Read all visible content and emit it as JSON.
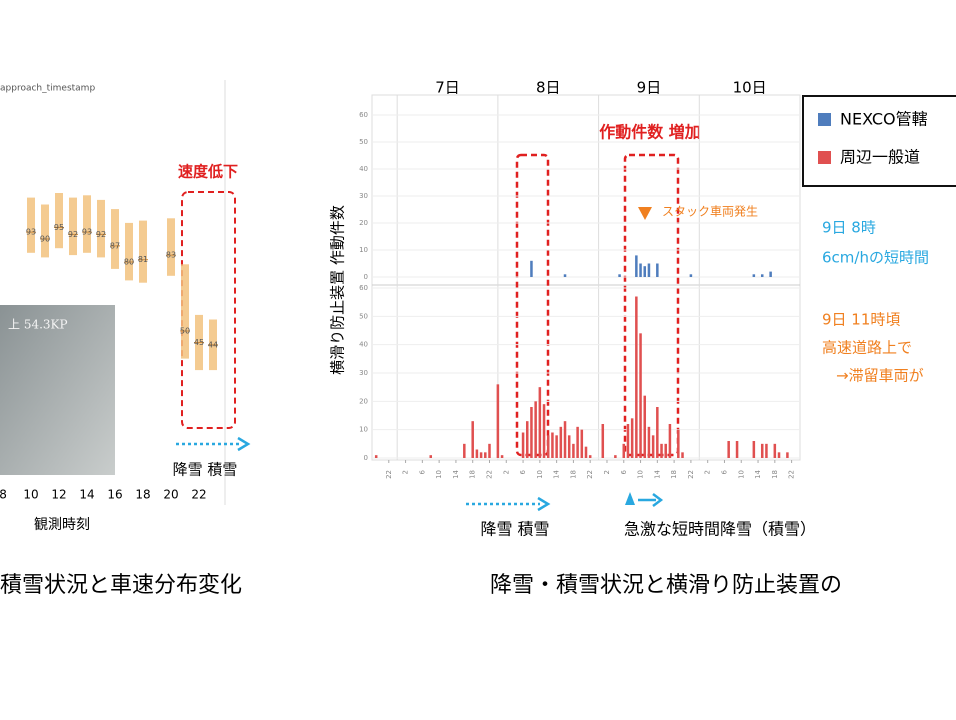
{
  "chart_data": [
    {
      "type": "range_bar",
      "title": "approach_timestamp",
      "x_label": "観測時刻",
      "photo_label": "上 54.3KP",
      "annotation": "速度低下",
      "arrow_label": "降雪 積雪",
      "caption": "積雪状況と車速分布変化",
      "xlim": [
        8,
        23.5
      ],
      "xticks": [
        8,
        10,
        12,
        14,
        16,
        18,
        20,
        22
      ],
      "ylim": [
        20,
        120
      ],
      "series": [
        {
          "color": "#f2c27e",
          "x": [
            10,
            11,
            12,
            13,
            14,
            15,
            16,
            17,
            18,
            20,
            21,
            22,
            23
          ],
          "low": [
            84,
            82,
            86,
            83,
            84,
            82,
            77,
            72,
            71,
            74,
            38,
            33,
            33
          ],
          "high": [
            108,
            105,
            110,
            108,
            109,
            107,
            103,
            97,
            98,
            99,
            79,
            57,
            55
          ],
          "values": [
            93,
            90,
            95,
            92,
            93,
            92,
            87,
            80,
            81,
            83,
            50,
            45,
            44
          ]
        }
      ]
    },
    {
      "type": "bar",
      "y_label": "横滑り防止装置 作動件数",
      "annotation": "作動件数 増加",
      "stuck_label": "スタック車両発生",
      "note_blue": [
        "9日 8時",
        "6cm/hの短時間"
      ],
      "note_orange": [
        "9日 11時頃",
        "高速道路上で",
        "→滞留車両が"
      ],
      "arrow_labels": [
        "降雪 積雪",
        "急激な短時間降雪（積雪）"
      ],
      "caption": "降雪・積雪状況と横滑り防止装置の",
      "xlim": [
        0,
        102
      ],
      "day_labels": [
        {
          "value": 18,
          "label": "7日"
        },
        {
          "value": 42,
          "label": "8日"
        },
        {
          "value": 66,
          "label": "9日"
        },
        {
          "value": 90,
          "label": "10日"
        }
      ],
      "day_lines": [
        6,
        30,
        54,
        78
      ],
      "xticks": [
        {
          "value": 4,
          "label": "22"
        },
        {
          "value": 8,
          "label": "2"
        },
        {
          "value": 12,
          "label": "6"
        },
        {
          "value": 16,
          "label": "10"
        },
        {
          "value": 20,
          "label": "14"
        },
        {
          "value": 24,
          "label": "18"
        },
        {
          "value": 28,
          "label": "22"
        },
        {
          "value": 32,
          "label": "2"
        },
        {
          "value": 36,
          "label": "6"
        },
        {
          "value": 40,
          "label": "10"
        },
        {
          "value": 44,
          "label": "14"
        },
        {
          "value": 48,
          "label": "18"
        },
        {
          "value": 52,
          "label": "22"
        },
        {
          "value": 56,
          "label": "2"
        },
        {
          "value": 60,
          "label": "6"
        },
        {
          "value": 64,
          "label": "10"
        },
        {
          "value": 68,
          "label": "14"
        },
        {
          "value": 72,
          "label": "18"
        },
        {
          "value": 76,
          "label": "22"
        },
        {
          "value": 80,
          "label": "2"
        },
        {
          "value": 84,
          "label": "6"
        },
        {
          "value": 88,
          "label": "10"
        },
        {
          "value": 92,
          "label": "14"
        },
        {
          "value": 96,
          "label": "18"
        },
        {
          "value": 100,
          "label": "22"
        }
      ],
      "panels": [
        {
          "ylim": [
            0,
            60
          ],
          "yticks": [
            0,
            10,
            20,
            30,
            40,
            50,
            60
          ]
        },
        {
          "ylim": [
            0,
            60
          ],
          "yticks": [
            0,
            10,
            20,
            30,
            40,
            50,
            60
          ]
        }
      ],
      "series": [
        {
          "name": "NEXCO管轄",
          "color": "#4f7dbd",
          "panel": 0,
          "x": [
            38,
            46,
            59,
            63,
            64,
            65,
            66,
            68,
            76,
            91,
            93,
            95
          ],
          "values": [
            6,
            1,
            1,
            8,
            5,
            4,
            5,
            5,
            1,
            1,
            1,
            2
          ]
        },
        {
          "name": "周辺一般道",
          "color": "#e05050",
          "panel": 1,
          "x": [
            1,
            14,
            22,
            24,
            25,
            26,
            27,
            28,
            30,
            31,
            36,
            37,
            38,
            39,
            40,
            41,
            42,
            43,
            44,
            45,
            46,
            47,
            48,
            49,
            50,
            51,
            52,
            55,
            58,
            60,
            61,
            62,
            63,
            64,
            65,
            66,
            67,
            68,
            69,
            70,
            71,
            73,
            74,
            85,
            87,
            91,
            93,
            94,
            96,
            97,
            99
          ],
          "values": [
            1,
            1,
            5,
            13,
            3,
            2,
            2,
            5,
            26,
            1,
            9,
            13,
            18,
            20,
            25,
            19,
            8,
            9,
            8,
            11,
            13,
            8,
            5,
            11,
            10,
            4,
            1,
            12,
            1,
            5,
            12,
            14,
            57,
            44,
            22,
            11,
            8,
            18,
            5,
            5,
            12,
            10,
            2,
            6,
            6,
            6,
            5,
            5,
            5,
            2,
            2
          ]
        }
      ]
    }
  ]
}
